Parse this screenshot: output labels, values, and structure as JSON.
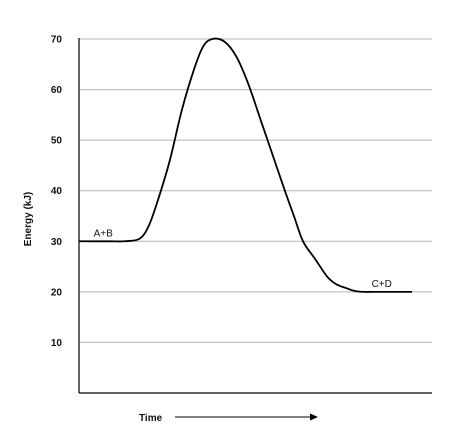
{
  "chart_data": {
    "type": "line",
    "title": "",
    "xlabel": "Time",
    "ylabel": "Energy (kJ)",
    "ylim": [
      0,
      70
    ],
    "yticks": [
      10,
      20,
      30,
      40,
      50,
      60,
      70
    ],
    "grid": true,
    "x_axis_arrow": true,
    "series": [
      {
        "values_note_free": true,
        "x": [
          0,
          1,
          1.5,
          2,
          2.3,
          2.6,
          3,
          3.4,
          3.8,
          4.1,
          4.4,
          4.8,
          5.2,
          5.6,
          6,
          6.4,
          6.8,
          7.1,
          7.4,
          7.8,
          8.2,
          8.5,
          8.8,
          9.1,
          9.4,
          9.8,
          10.2,
          11
        ],
        "y": [
          30,
          30,
          30,
          30.5,
          33,
          38,
          46,
          56,
          64,
          68.5,
          70,
          69.5,
          66.5,
          61,
          54,
          47,
          40,
          35,
          30,
          26.5,
          23,
          21.5,
          20.8,
          20.2,
          20,
          20,
          20,
          20
        ]
      }
    ],
    "annotations": [
      {
        "text": "A+B",
        "x": 0.8,
        "y": 30
      },
      {
        "text": "C+D",
        "x": 10.0,
        "y": 20
      }
    ]
  }
}
